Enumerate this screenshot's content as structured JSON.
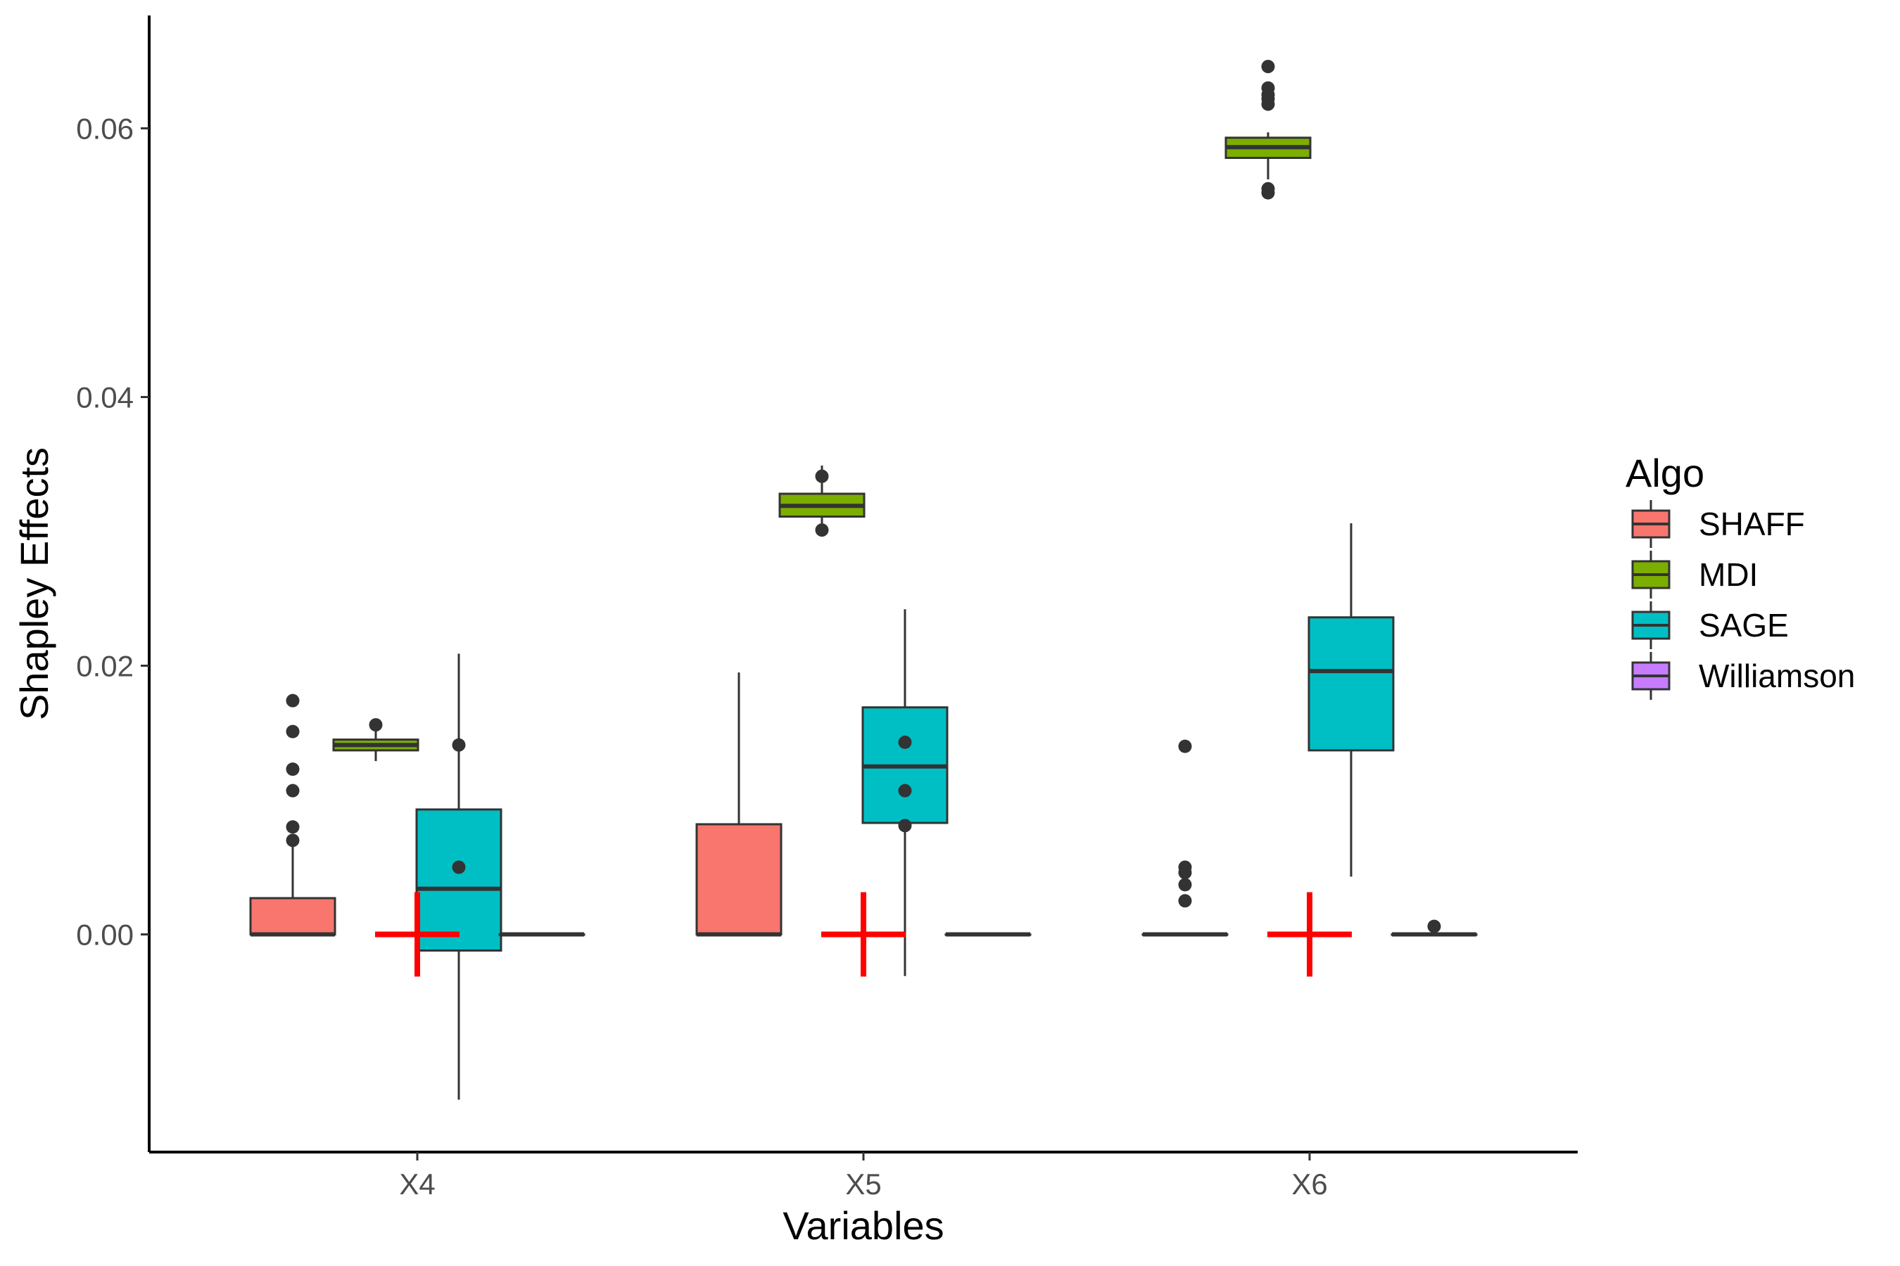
{
  "chart_data": {
    "type": "boxplot",
    "xlabel": "Variables",
    "ylabel": "Shapley Effects",
    "categories": [
      "X4",
      "X5",
      "X6"
    ],
    "ylim": [
      -0.0162,
      0.0684
    ],
    "yticks": [
      0.0,
      0.02,
      0.04,
      0.06
    ],
    "ytick_labels": [
      "0.00",
      "0.02",
      "0.04",
      "0.06"
    ],
    "legend": {
      "title": "Algo",
      "placement": "right"
    },
    "series": [
      {
        "name": "SHAFF",
        "color": "#F8766D",
        "boxes": [
          {
            "category": "X4",
            "lower_whisker": 0.0,
            "q1": 0.0,
            "median": 0.0,
            "q3": 0.0027,
            "upper_whisker": 0.0068,
            "outliers": [
              0.007,
              0.008,
              0.0107,
              0.0123,
              0.0151,
              0.0174
            ]
          },
          {
            "category": "X5",
            "lower_whisker": 0.0,
            "q1": 0.0,
            "median": 0.0,
            "q3": 0.0082,
            "upper_whisker": 0.0195,
            "outliers": []
          },
          {
            "category": "X6",
            "lower_whisker": 0.0,
            "q1": 0.0,
            "median": 0.0,
            "q3": 0.0,
            "upper_whisker": 0.0,
            "outliers": [
              0.0025,
              0.0037,
              0.0046,
              0.005,
              0.014
            ]
          }
        ]
      },
      {
        "name": "MDI",
        "color": "#7CAE00",
        "boxes": [
          {
            "category": "X4",
            "lower_whisker": 0.0129,
            "q1": 0.0137,
            "median": 0.0141,
            "q3": 0.0145,
            "upper_whisker": 0.0152,
            "outliers": [
              0.0156
            ]
          },
          {
            "category": "X5",
            "lower_whisker": 0.0297,
            "q1": 0.0311,
            "median": 0.0319,
            "q3": 0.0328,
            "upper_whisker": 0.0349,
            "outliers": [
              0.0341,
              0.0301
            ]
          },
          {
            "category": "X6",
            "lower_whisker": 0.0562,
            "q1": 0.0578,
            "median": 0.0586,
            "q3": 0.0593,
            "upper_whisker": 0.0597,
            "outliers": [
              0.0555,
              0.0552,
              0.0618,
              0.0622,
              0.0625,
              0.063,
              0.0646
            ]
          }
        ]
      },
      {
        "name": "SAGE",
        "color": "#00BFC4",
        "boxes": [
          {
            "category": "X4",
            "lower_whisker": -0.0123,
            "q1": -0.0012,
            "median": 0.0034,
            "q3": 0.0093,
            "upper_whisker": 0.0209,
            "outliers": [
              0.005,
              0.0141
            ]
          },
          {
            "category": "X5",
            "lower_whisker": -0.0031,
            "q1": 0.0083,
            "median": 0.0125,
            "q3": 0.0169,
            "upper_whisker": 0.0242,
            "outliers": [
              0.0081,
              0.0107,
              0.0143
            ]
          },
          {
            "category": "X6",
            "lower_whisker": 0.0043,
            "q1": 0.0137,
            "median": 0.0196,
            "q3": 0.0236,
            "upper_whisker": 0.0306,
            "outliers": []
          }
        ]
      },
      {
        "name": "Williamson",
        "color": "#C77CFF",
        "boxes": [
          {
            "category": "X4",
            "lower_whisker": 0.0,
            "q1": 0.0,
            "median": 0.0,
            "q3": 0.0,
            "upper_whisker": 0.0,
            "outliers": []
          },
          {
            "category": "X5",
            "lower_whisker": 0.0,
            "q1": 0.0,
            "median": 0.0,
            "q3": 0.0,
            "upper_whisker": 0.0,
            "outliers": []
          },
          {
            "category": "X6",
            "lower_whisker": 0.0,
            "q1": 0.0,
            "median": 0.0,
            "q3": 0.0,
            "upper_whisker": 0.0,
            "outliers": [
              0.0006
            ]
          }
        ]
      }
    ],
    "reference_markers": [
      {
        "category": "X4",
        "value": 0.0,
        "color": "#FF0000",
        "shape": "cross"
      },
      {
        "category": "X5",
        "value": 0.0,
        "color": "#FF0000",
        "shape": "cross"
      },
      {
        "category": "X6",
        "value": 0.0,
        "color": "#FF0000",
        "shape": "cross"
      }
    ]
  }
}
